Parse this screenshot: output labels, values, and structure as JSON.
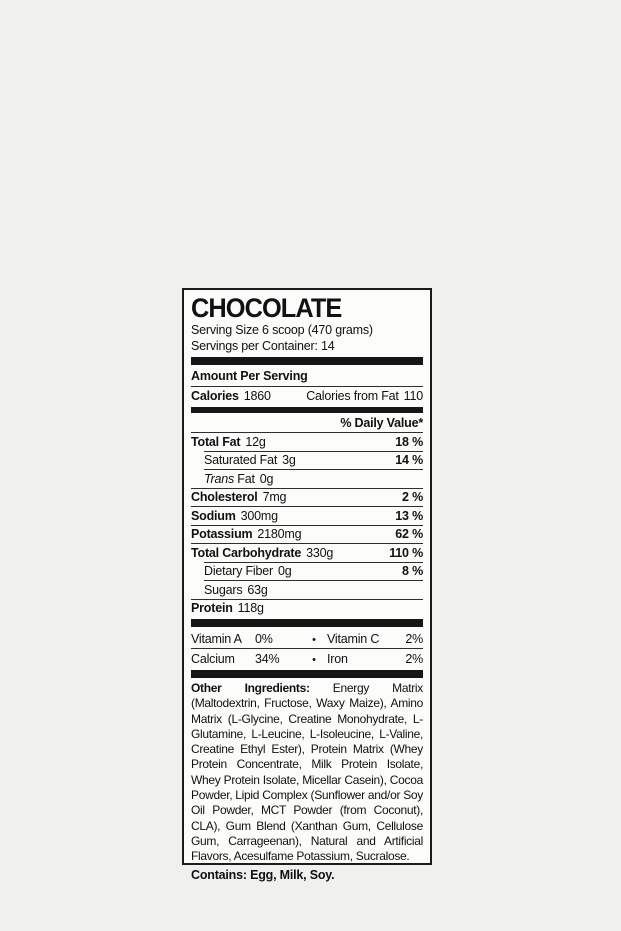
{
  "page": {
    "background_color": "#f0f0ee"
  },
  "label": {
    "border_color": "#1c1c1c",
    "bg_color": "#fcfcfa",
    "bar_color": "#161616",
    "title": "CHOCOLATE",
    "serving_size": "Serving Size 6 scoop (470 grams)",
    "servings_per_container": "Servings per Container: 14",
    "amount_per_serving": "Amount Per Serving",
    "calories": {
      "label": "Calories",
      "value": "1860",
      "from_fat_label": "Calories from Fat",
      "from_fat_value": "110"
    },
    "daily_value_header": "% Daily Value*",
    "rows": [
      {
        "name": "Total Fat",
        "amount": "12g",
        "dv": "18 %"
      },
      {
        "name": "Saturated Fat",
        "amount": "3g",
        "dv": "14 %"
      },
      {
        "name_italic": "Trans",
        "name_rest": " Fat",
        "amount": "0g",
        "dv": ""
      },
      {
        "name": "Cholesterol",
        "amount": "7mg",
        "dv": "2 %"
      },
      {
        "name": "Sodium",
        "amount": "300mg",
        "dv": "13 %"
      },
      {
        "name": "Potassium",
        "amount": "2180mg",
        "dv": "62 %"
      },
      {
        "name": "Total Carbohydrate",
        "amount": "330g",
        "dv": "110 %"
      },
      {
        "name": "Dietary Fiber",
        "amount": "0g",
        "dv": "8 %"
      },
      {
        "name": "Sugars",
        "amount": "63g",
        "dv": ""
      },
      {
        "name": "Protein",
        "amount": "118g",
        "dv": ""
      }
    ],
    "micronutrients": {
      "bullet": "•",
      "rows": [
        {
          "left_name": "Vitamin A",
          "left_value": "0%",
          "right_name": "Vitamin C",
          "right_value": "2%"
        },
        {
          "left_name": "Calcium",
          "left_value": "34%",
          "right_name": "Iron",
          "right_value": "2%"
        }
      ]
    },
    "other_ingredients_label": "Other Ingredients:",
    "other_ingredients_text": " Energy Matrix (Maltodextrin, Fructose, Waxy Maize), Amino Matrix (L-Glycine, Creatine Monohydrate, L-Glutamine, L-Leucine, L-Isoleucine, L-Valine, Creatine Ethyl Ester), Protein Matrix (Whey Protein Concentrate, Milk Protein Isolate, Whey Protein Isolate, Micellar Casein), Cocoa Powder, Lipid Complex (Sunflower and/or Soy Oil Powder, MCT Powder (from Coconut), CLA), Gum Blend (Xanthan Gum, Cellulose Gum, Carrageenan), Natural and Artificial Flavors, Acesulfame Potassium, Sucralose.",
    "contains": "Contains: Egg, Milk, Soy."
  }
}
